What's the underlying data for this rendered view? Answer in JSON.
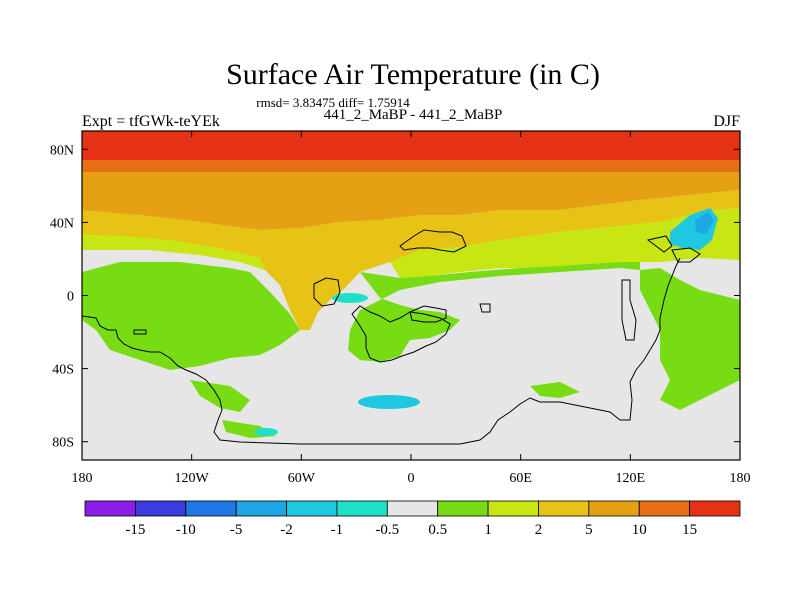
{
  "chart_data": {
    "type": "heatmap",
    "title": "Surface Air Temperature (in C)",
    "subtitle": "rmsd= 3.83475 diff= 1.75914",
    "experiment_label": "Expt = tfGWk-teYEk",
    "comparison_label": "441_2_MaBP - 441_2_MaBP",
    "season": "DJF",
    "x_ticks": [
      "180",
      "120W",
      "60W",
      "0",
      "60E",
      "120E",
      "180"
    ],
    "x_tick_lon": [
      -180,
      -120,
      -60,
      0,
      60,
      120,
      180
    ],
    "y_ticks": [
      "80N",
      "40N",
      "0",
      "40S",
      "80S"
    ],
    "y_tick_lat": [
      80,
      40,
      0,
      -40,
      -80
    ],
    "xlim": [
      -180,
      180
    ],
    "ylim": [
      -90,
      90
    ],
    "colorbar": {
      "labels": [
        "-15",
        "-10",
        "-5",
        "-2",
        "-1",
        "-0.5",
        "0.5",
        "1",
        "2",
        "5",
        "10",
        "15"
      ],
      "colors": [
        "#8a1ee8",
        "#3c3ce0",
        "#1e78e6",
        "#1ea6e6",
        "#1ec8e0",
        "#1ee0c8",
        "#e6e6e6",
        "#78dc14",
        "#c8e614",
        "#e6c314",
        "#e6a014",
        "#e66e14",
        "#e63214"
      ]
    },
    "bands": [
      {
        "label": "15+",
        "lat_range": [
          72,
          90
        ],
        "color": "#e63214"
      },
      {
        "label": "10 to 15",
        "lat_range": [
          66,
          72
        ],
        "color": "#e66e14"
      },
      {
        "label": "5 to 10",
        "lat_range": [
          50,
          66
        ],
        "color": "#e6a014"
      },
      {
        "label": "2 to 5",
        "lat_range": [
          22,
          50
        ],
        "color": "#e6c314"
      },
      {
        "label": "1 to 2",
        "lat_range": [
          10,
          22
        ],
        "color": "#c8e614"
      },
      {
        "label": "0.5 to 1",
        "lat_range": [
          -60,
          10
        ],
        "color": "#78dc14"
      },
      {
        "label": "-0.5 to 0.5",
        "lat_range": [
          -90,
          10
        ],
        "color": "#e6e6e6"
      }
    ]
  }
}
